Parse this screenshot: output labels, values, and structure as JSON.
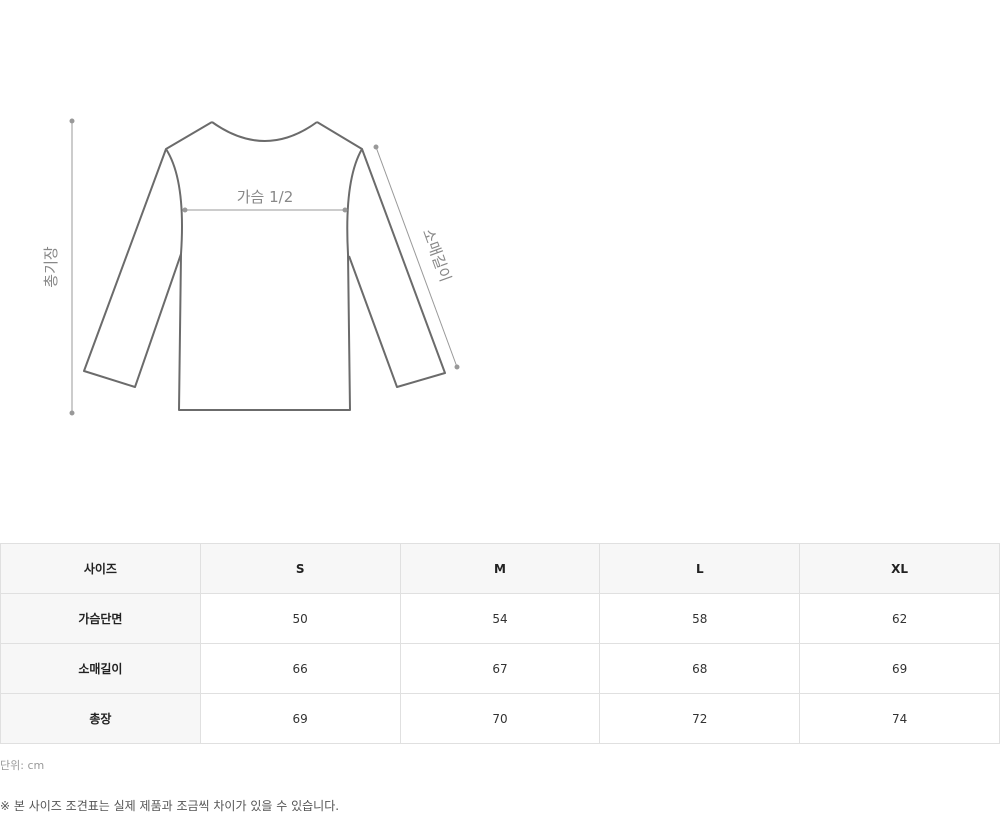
{
  "diagram": {
    "chest_label": "가슴 1/2",
    "length_label": "총기장",
    "sleeve_label": "소매길이"
  },
  "table": {
    "headers": [
      "사이즈",
      "S",
      "M",
      "L",
      "XL"
    ],
    "rows": [
      {
        "label": "가슴단면",
        "values": [
          "50",
          "54",
          "58",
          "62"
        ]
      },
      {
        "label": "소매길이",
        "values": [
          "66",
          "67",
          "68",
          "69"
        ]
      },
      {
        "label": "총장",
        "values": [
          "69",
          "70",
          "72",
          "74"
        ]
      }
    ]
  },
  "unit_text": "단위: cm",
  "note_text": "※ 본 사이즈 조견표는 실제 제품과 조금씩 차이가 있을 수 있습니다."
}
